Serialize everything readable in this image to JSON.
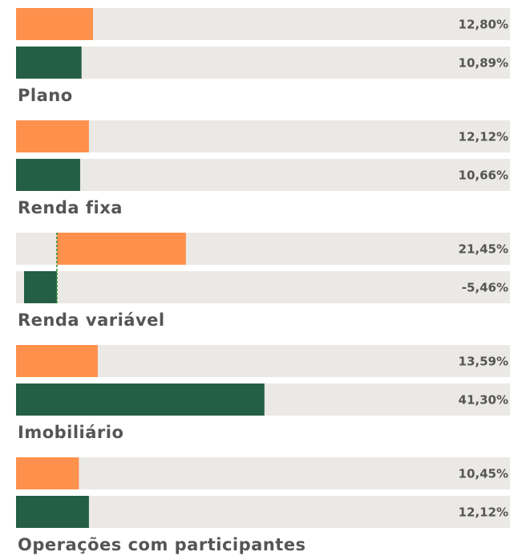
{
  "chart_data": {
    "type": "bar",
    "colors": [
      "#ff914d",
      "#235e45"
    ],
    "groups": [
      {
        "values": [
          12.8,
          10.89
        ],
        "value_labels": [
          "12,80%",
          "10,89%"
        ]
      },
      {
        "label": "Plano",
        "values": [
          12.12,
          10.66
        ],
        "value_labels": [
          "12,12%",
          "10,66%"
        ]
      },
      {
        "label": "Renda fixa",
        "values": [
          21.45,
          -5.46
        ],
        "value_labels": [
          "21,45%",
          "-5,46%"
        ]
      },
      {
        "label": "Renda variável",
        "values": [
          13.59,
          41.3
        ],
        "value_labels": [
          "13,59%",
          "41,30%"
        ]
      },
      {
        "label": "Imobiliário",
        "values": [
          10.45,
          12.12
        ],
        "value_labels": [
          "10,45%",
          "12,12%"
        ]
      },
      {
        "label": "Operações com participantes"
      }
    ]
  }
}
